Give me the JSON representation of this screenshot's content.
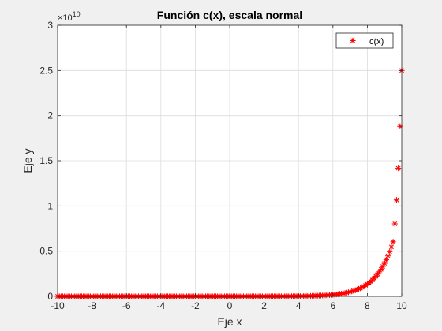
{
  "chart_data": {
    "type": "scatter",
    "title": "Función c(x), escala normal",
    "xlabel": "Eje x",
    "ylabel": "Eje y",
    "xlim": [
      -10,
      10
    ],
    "ylim": [
      0,
      3
    ],
    "y_exponent_label": "×10",
    "y_exponent_power": "10",
    "xticks": [
      -10,
      -8,
      -6,
      -4,
      -2,
      0,
      2,
      4,
      6,
      8,
      10
    ],
    "yticks": [
      0,
      0.5,
      1,
      1.5,
      2,
      2.5,
      3
    ],
    "xtick_labels": [
      "-10",
      "-8",
      "-6",
      "-4",
      "-2",
      "0",
      "2",
      "4",
      "6",
      "8",
      "10"
    ],
    "ytick_labels": [
      "0",
      "0.5",
      "1",
      "1.5",
      "2",
      "2.5",
      "3"
    ],
    "grid": true,
    "legend": {
      "position": "top-right",
      "entries": [
        "c(x)"
      ]
    },
    "series": [
      {
        "name": "c(x)",
        "marker": "asterisk",
        "color": "#ff0000",
        "x_range": [
          -10,
          10
        ],
        "n_points": 201,
        "y_scale_factor": 10000000000.0,
        "x": [
          0,
          1,
          2,
          3,
          4,
          5,
          5.5,
          6,
          6.5,
          7,
          7.5,
          8,
          8.5,
          9,
          9.5,
          10
        ],
        "y": [
          0,
          0.0001,
          0.0003,
          0.0009,
          0.0025,
          0.007,
          0.011,
          0.018,
          0.03,
          0.05,
          0.082,
          0.135,
          0.222,
          0.366,
          0.604,
          2.5
        ]
      }
    ]
  }
}
